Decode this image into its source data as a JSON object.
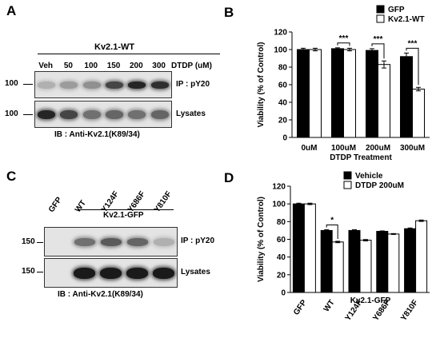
{
  "panels": {
    "A": {
      "letter": "A",
      "title": "Kv2.1-WT",
      "lanes": [
        "Veh",
        "50",
        "100",
        "150",
        "200",
        "300"
      ],
      "dose_label": "DTDP (uM)",
      "mw": [
        "100",
        "100"
      ],
      "row_labels": [
        "IP : pY20",
        "Lysates"
      ],
      "ib_label": "IB : Anti-Kv2.1(K89/34)",
      "ip_intensity": [
        0.25,
        0.35,
        0.4,
        0.75,
        0.9,
        0.85
      ],
      "lysate_intensity": [
        0.9,
        0.75,
        0.55,
        0.6,
        0.55,
        0.6
      ]
    },
    "C": {
      "letter": "C",
      "lanes": [
        "GFP",
        "WT",
        "Y124F",
        "Y686F",
        "Y810F"
      ],
      "group_label": "Kv2.1-GFP",
      "mw": [
        "150",
        "150"
      ],
      "row_labels": [
        "IP : pY20",
        "Lysates"
      ],
      "ib_label": "IB : Anti-Kv2.1(K89/34)",
      "ip_intensity": [
        0.0,
        0.55,
        0.65,
        0.6,
        0.25
      ],
      "lysate_intensity": [
        0.0,
        0.95,
        0.95,
        0.95,
        0.95
      ]
    }
  },
  "chart_data": [
    {
      "panel": "B",
      "type": "bar",
      "letter": "B",
      "categories": [
        "0uM",
        "100uM",
        "200uM",
        "300uM"
      ],
      "series": [
        {
          "name": "GFP",
          "values": [
            100,
            101,
            99,
            92
          ],
          "errors": [
            1.5,
            1,
            2,
            4
          ],
          "color": "#000000"
        },
        {
          "name": "Kv2.1-WT",
          "values": [
            100,
            100,
            83,
            55
          ],
          "errors": [
            1.5,
            1.5,
            4,
            2
          ],
          "color": "#ffffff"
        }
      ],
      "xlabel": "DTDP Treatment",
      "ylabel": "Viability (% of Control)",
      "ylim": [
        0,
        120
      ],
      "yticks": [
        0,
        20,
        40,
        60,
        80,
        100,
        120
      ],
      "legend": "top-right",
      "significance": [
        {
          "category": 1,
          "label": "***"
        },
        {
          "category": 2,
          "label": "***"
        },
        {
          "category": 3,
          "label": "***"
        }
      ]
    },
    {
      "panel": "D",
      "type": "bar",
      "letter": "D",
      "categories": [
        "GFP",
        "WT",
        "Y124F",
        "Y686F",
        "Y810F"
      ],
      "group_label": "Kv2.1-GFP",
      "series": [
        {
          "name": "Vehicle",
          "values": [
            100,
            70,
            70,
            69,
            72
          ],
          "errors": [
            0.8,
            0.8,
            0.8,
            0.5,
            0.8
          ],
          "color": "#000000"
        },
        {
          "name": "DTDP 200uM",
          "values": [
            100,
            57,
            59,
            66,
            81
          ],
          "errors": [
            0.8,
            0.8,
            0.8,
            0.5,
            0.8
          ],
          "color": "#ffffff"
        }
      ],
      "xlabel": "",
      "ylabel": "Viability (% of Control)",
      "ylim": [
        0,
        120
      ],
      "yticks": [
        0,
        20,
        40,
        60,
        80,
        100,
        120
      ],
      "legend": "top-right",
      "significance": [
        {
          "category": 1,
          "label": "*"
        }
      ]
    }
  ]
}
